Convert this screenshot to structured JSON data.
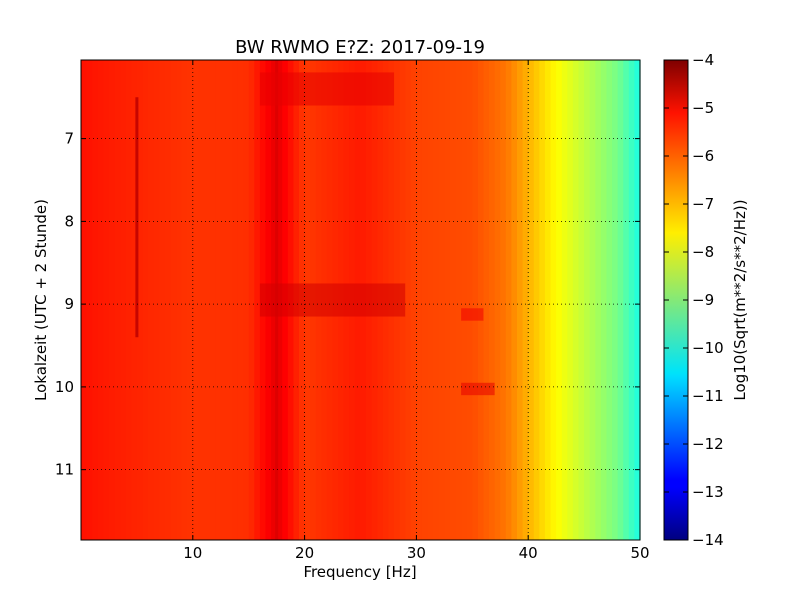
{
  "chart_data": {
    "type": "heatmap",
    "title": "BW RWMO E?Z: 2017-09-19",
    "xlabel": "Frequency [Hz]",
    "ylabel": "Lokalzeit (UTC + 2 Stunde)",
    "colorbar_label": "Log10(Sqrt(m**2/s**2/Hz))",
    "xlim": [
      0,
      50
    ],
    "ylim": [
      11.85,
      6.05
    ],
    "x_ticks": [
      10,
      20,
      30,
      40,
      50
    ],
    "y_ticks": [
      7,
      8,
      9,
      10,
      11
    ],
    "clim": [
      -14,
      -4
    ],
    "colorbar_ticks": [
      -4,
      -5,
      -6,
      -7,
      -8,
      -9,
      -10,
      -11,
      -12,
      -13,
      -14
    ],
    "colormap": "jet",
    "grid": true,
    "profile": {
      "frequency_hz": [
        0,
        2,
        5,
        10,
        15,
        17.5,
        20,
        25,
        30,
        35,
        38,
        40,
        42,
        44,
        46,
        48,
        50
      ],
      "log10_amplitude": [
        -5.4,
        -5.5,
        -5.6,
        -5.75,
        -5.7,
        -5.0,
        -5.8,
        -5.5,
        -5.9,
        -6.0,
        -6.4,
        -7.0,
        -7.6,
        -8.1,
        -8.6,
        -9.1,
        -10.0
      ]
    },
    "features": [
      {
        "type": "line",
        "frequency_hz": 5.0,
        "time_range": [
          6.5,
          9.4
        ],
        "log10_amplitude": -4.6
      },
      {
        "type": "line",
        "frequency_hz": 17.5,
        "time_range": [
          6.05,
          11.85
        ],
        "log10_amplitude": -4.9
      },
      {
        "type": "patch",
        "frequency_hz": [
          16,
          29
        ],
        "time_range": [
          8.75,
          9.15
        ],
        "log10_amplitude": -4.8
      },
      {
        "type": "patch",
        "frequency_hz": [
          16,
          28
        ],
        "time_range": [
          6.2,
          6.6
        ],
        "log10_amplitude": -5.0
      },
      {
        "type": "patch",
        "frequency_hz": [
          34,
          37
        ],
        "time_range": [
          9.95,
          10.1
        ],
        "log10_amplitude": -5.0
      },
      {
        "type": "patch",
        "frequency_hz": [
          34,
          36
        ],
        "time_range": [
          9.05,
          9.2
        ],
        "log10_amplitude": -5.1
      }
    ]
  }
}
